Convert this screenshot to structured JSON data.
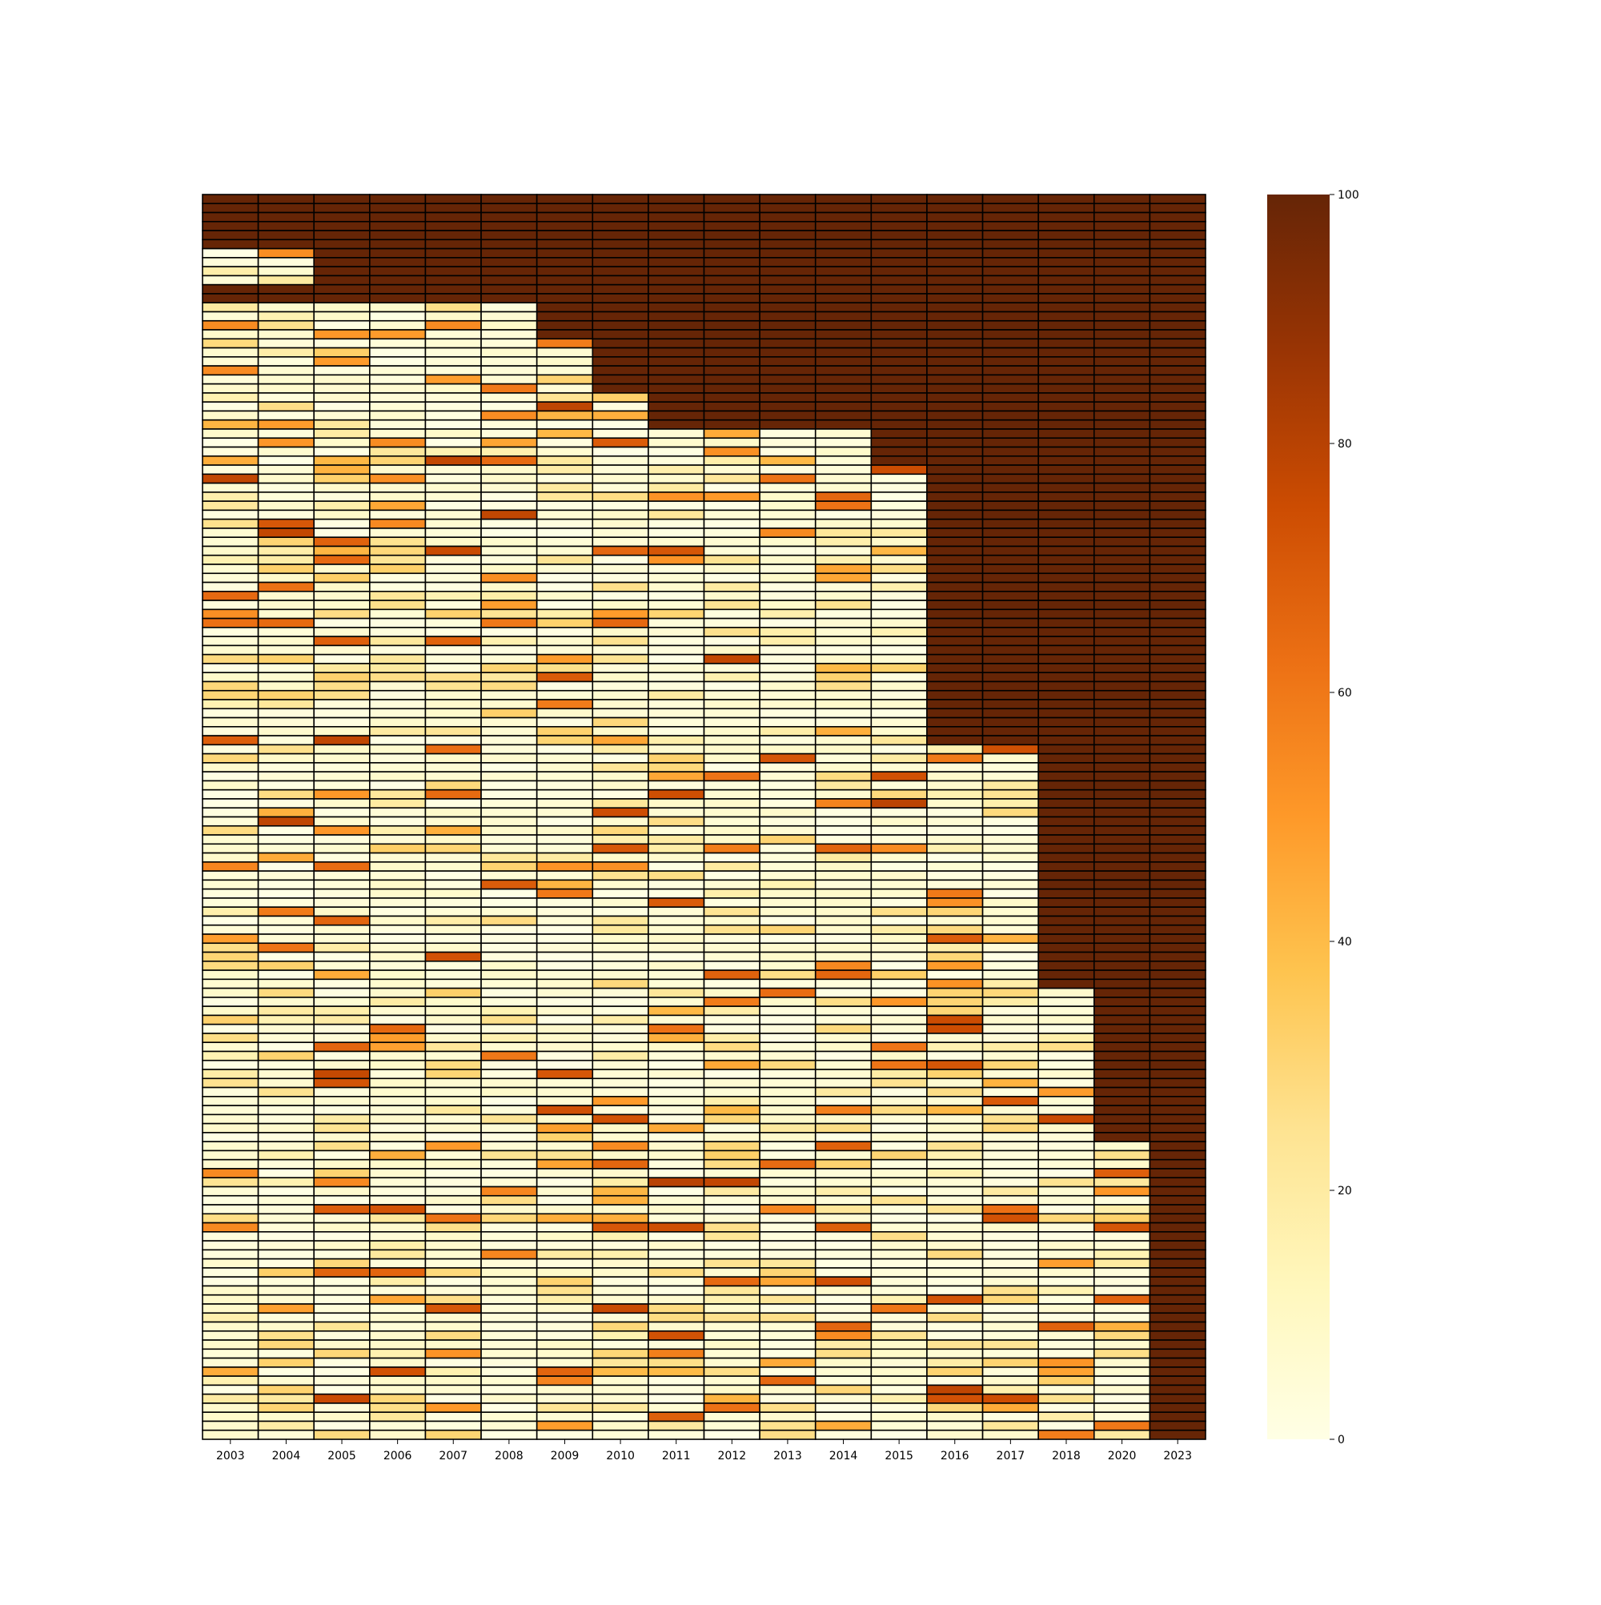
{
  "chart_data": {
    "type": "heatmap",
    "title": "",
    "xlabel": "",
    "ylabel": "",
    "x_categories": [
      "2003",
      "2004",
      "2005",
      "2006",
      "2007",
      "2008",
      "2009",
      "2010",
      "2011",
      "2012",
      "2013",
      "2014",
      "2015",
      "2016",
      "2017",
      "2018",
      "2020",
      "2023"
    ],
    "row_count": 138,
    "value_range": [
      0,
      100
    ],
    "colormap": "YlOrBr",
    "colormap_stops": [
      "#ffffe5",
      "#fff7bc",
      "#fee391",
      "#fec44f",
      "#fe9929",
      "#ec7014",
      "#cc4c02",
      "#993404",
      "#662506"
    ],
    "colorbar": {
      "ticks": [
        0,
        20,
        40,
        60,
        80,
        100
      ],
      "orientation": "vertical",
      "placement": "right"
    },
    "grid_color": "#000000",
    "y_tick_labels": "none",
    "first_full_year_column": {
      "note": "rows reach 100 from the given year column onward",
      "row_blocks": [
        {
          "rows": [
            0,
            5
          ],
          "year": "2003"
        },
        {
          "rows": [
            6,
            9
          ],
          "year": "2005"
        },
        {
          "rows": [
            10,
            11
          ],
          "year": "2003"
        },
        {
          "rows": [
            12,
            15
          ],
          "year": "2009"
        },
        {
          "rows": [
            16,
            21
          ],
          "year": "2010"
        },
        {
          "rows": [
            22,
            25
          ],
          "year": "2011"
        },
        {
          "rows": [
            26,
            29
          ],
          "year": "2015"
        },
        {
          "rows": [
            30,
            60
          ],
          "year": "2016"
        },
        {
          "rows": [
            61,
            87
          ],
          "year": "2018"
        },
        {
          "rows": [
            88,
            104
          ],
          "year": "2020"
        },
        {
          "rows": [
            105,
            137
          ],
          "year": "2023"
        }
      ]
    }
  }
}
